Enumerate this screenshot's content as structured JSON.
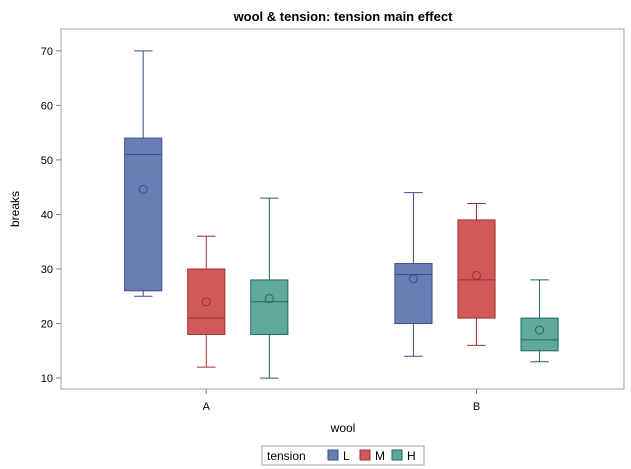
{
  "chart_data": {
    "type": "boxplot",
    "title": "wool & tension: tension main effect",
    "xlabel": "wool",
    "ylabel": "breaks",
    "categories": [
      "A",
      "B"
    ],
    "ylim": [
      8,
      74
    ],
    "yticks": [
      10,
      20,
      30,
      40,
      50,
      60,
      70
    ],
    "grid": false,
    "legend": {
      "title": "tension",
      "placement": "bottom-center"
    },
    "series": [
      {
        "name": "L",
        "color": "#6a7db5",
        "stroke": "#3b4f8c",
        "boxes": [
          {
            "category": "A",
            "min": 25,
            "q1": 26,
            "median": 51,
            "q3": 54,
            "max": 70,
            "mean": 44.6
          },
          {
            "category": "B",
            "min": 14,
            "q1": 20,
            "median": 29,
            "q3": 31,
            "max": 44,
            "mean": 28.2
          }
        ]
      },
      {
        "name": "M",
        "color": "#d05a5a",
        "stroke": "#a03030",
        "boxes": [
          {
            "category": "A",
            "min": 12,
            "q1": 18,
            "median": 21,
            "q3": 30,
            "max": 36,
            "mean": 24.0
          },
          {
            "category": "B",
            "min": 16,
            "q1": 21,
            "median": 28,
            "q3": 39,
            "max": 42,
            "mean": 28.8
          }
        ]
      },
      {
        "name": "H",
        "color": "#5fa89c",
        "stroke": "#1f6a60",
        "boxes": [
          {
            "category": "A",
            "min": 10,
            "q1": 18,
            "median": 24,
            "q3": 28,
            "max": 43,
            "mean": 24.6
          },
          {
            "category": "B",
            "min": 13,
            "q1": 15,
            "median": 17,
            "q3": 21,
            "max": 28,
            "mean": 18.8
          }
        ]
      }
    ]
  }
}
